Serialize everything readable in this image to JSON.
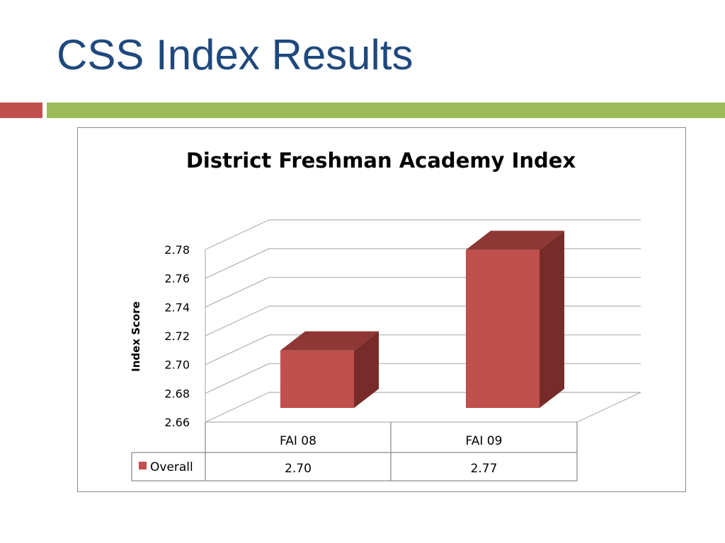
{
  "slide": {
    "title": "CSS Index Results",
    "accent_colors": {
      "red": "#c0504d",
      "green": "#9bbb59",
      "title": "#1f497d"
    }
  },
  "chart_data": {
    "type": "bar",
    "style": "3d-column",
    "title": "District Freshman Academy Index",
    "xlabel": "",
    "ylabel": "Index Score",
    "categories": [
      "FAI 08",
      "FAI 09"
    ],
    "series": [
      {
        "name": "Overall",
        "values": [
          2.7,
          2.77
        ],
        "display_values": [
          "2.70",
          "2.77"
        ],
        "color": "#c0504d"
      }
    ],
    "ylim": [
      2.66,
      2.78
    ],
    "yticks": [
      2.66,
      2.68,
      2.7,
      2.72,
      2.74,
      2.76,
      2.78
    ],
    "ytick_labels": [
      "2.66",
      "2.68",
      "2.70",
      "2.72",
      "2.74",
      "2.76",
      "2.78"
    ],
    "grid": true,
    "legend": "data-table"
  }
}
